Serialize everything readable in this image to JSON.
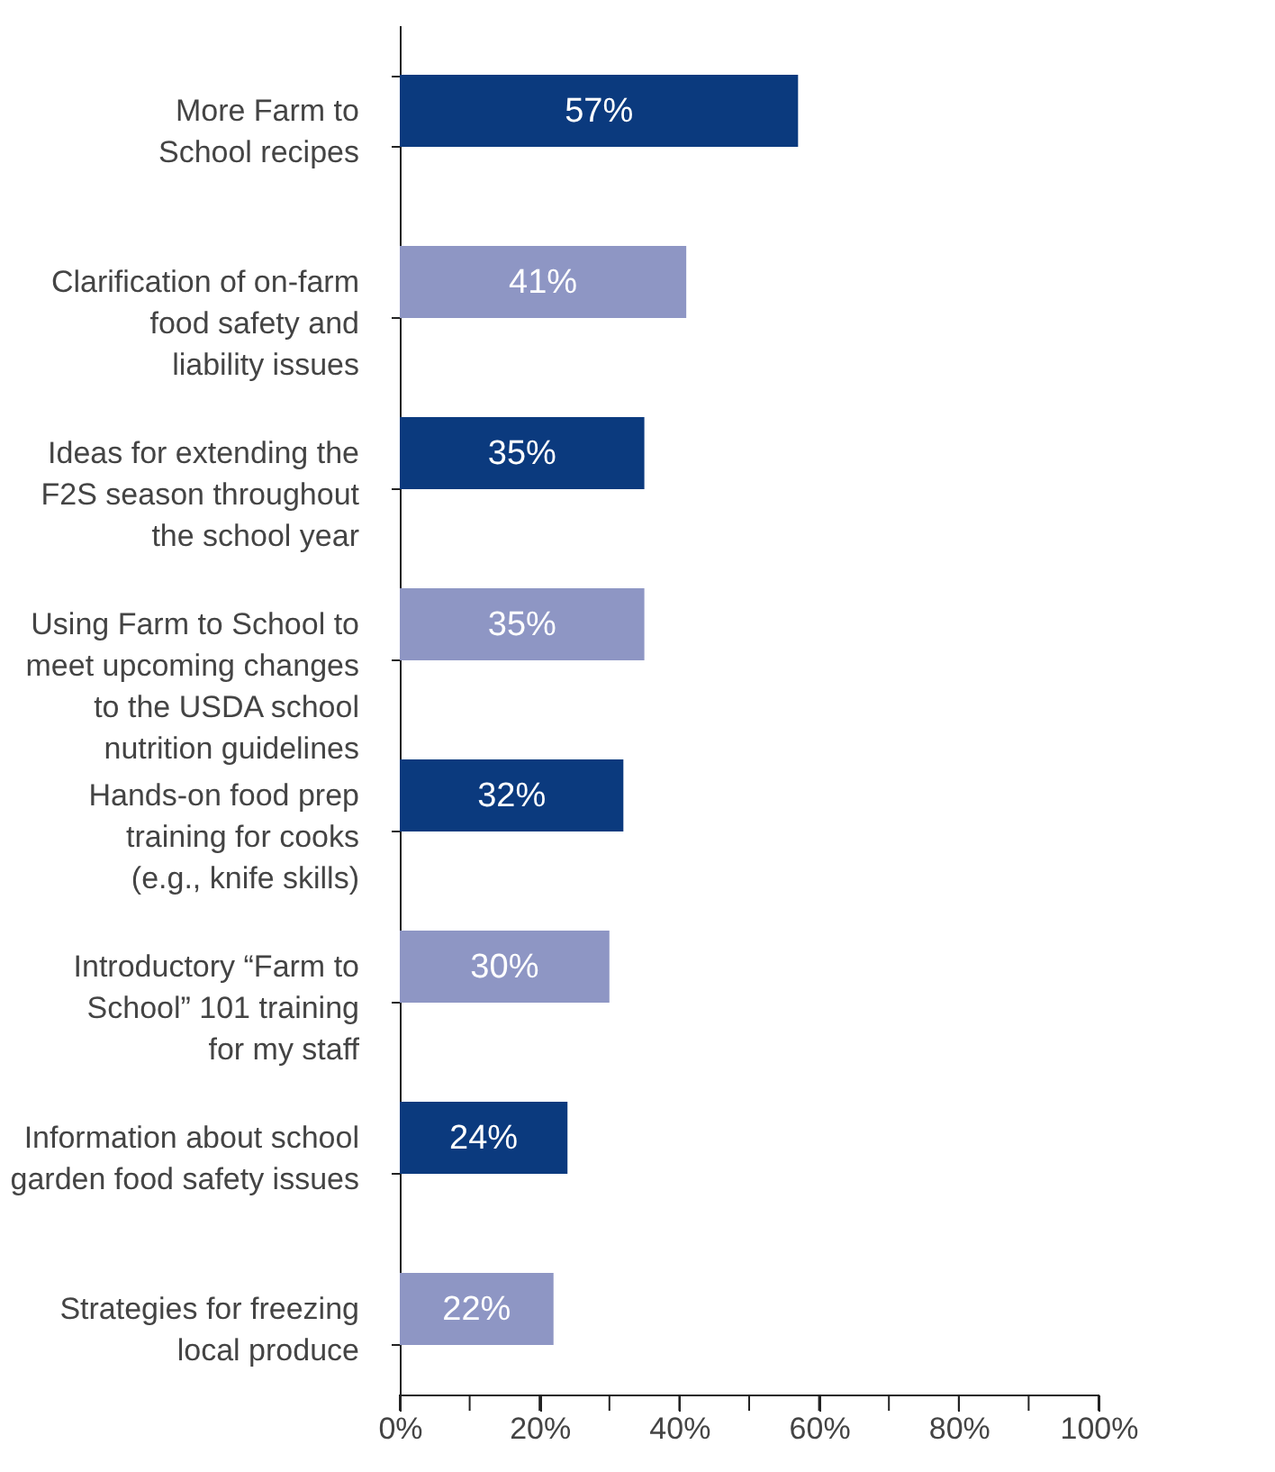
{
  "chart_data": {
    "type": "bar",
    "orientation": "horizontal",
    "categories": [
      "More Farm to\nSchool recipes",
      "Clarification of on-farm\nfood safety and\nliability issues",
      "Ideas for extending the\nF2S season throughout\nthe school year",
      "Using Farm to School to\nmeet upcoming changes\nto the USDA school\nnutrition guidelines",
      "Hands-on food prep\ntraining for cooks\n(e.g., knife skills)",
      "Introductory “Farm to\nSchool” 101 training\nfor my staff",
      "Information about school\ngarden food safety issues",
      "Strategies for freezing\nlocal produce"
    ],
    "values": [
      57,
      41,
      35,
      35,
      32,
      30,
      24,
      22
    ],
    "value_labels": [
      "57%",
      "41%",
      "35%",
      "35%",
      "32%",
      "30%",
      "24%",
      "22%"
    ],
    "colors": [
      "#0b3a7e",
      "#8e96c4",
      "#0b3a7e",
      "#8e96c4",
      "#0b3a7e",
      "#8e96c4",
      "#0b3a7e",
      "#8e96c4"
    ],
    "xlim": [
      0,
      100
    ],
    "xticks": [
      {
        "value": 0,
        "label": "0%"
      },
      {
        "value": 10,
        "label": null
      },
      {
        "value": 20,
        "label": "20%"
      },
      {
        "value": 30,
        "label": null
      },
      {
        "value": 40,
        "label": "40%"
      },
      {
        "value": 50,
        "label": null
      },
      {
        "value": 60,
        "label": "60%"
      },
      {
        "value": 70,
        "label": null
      },
      {
        "value": 80,
        "label": "80%"
      },
      {
        "value": 90,
        "label": null
      },
      {
        "value": 100,
        "label": "100%"
      }
    ],
    "grid": false
  }
}
